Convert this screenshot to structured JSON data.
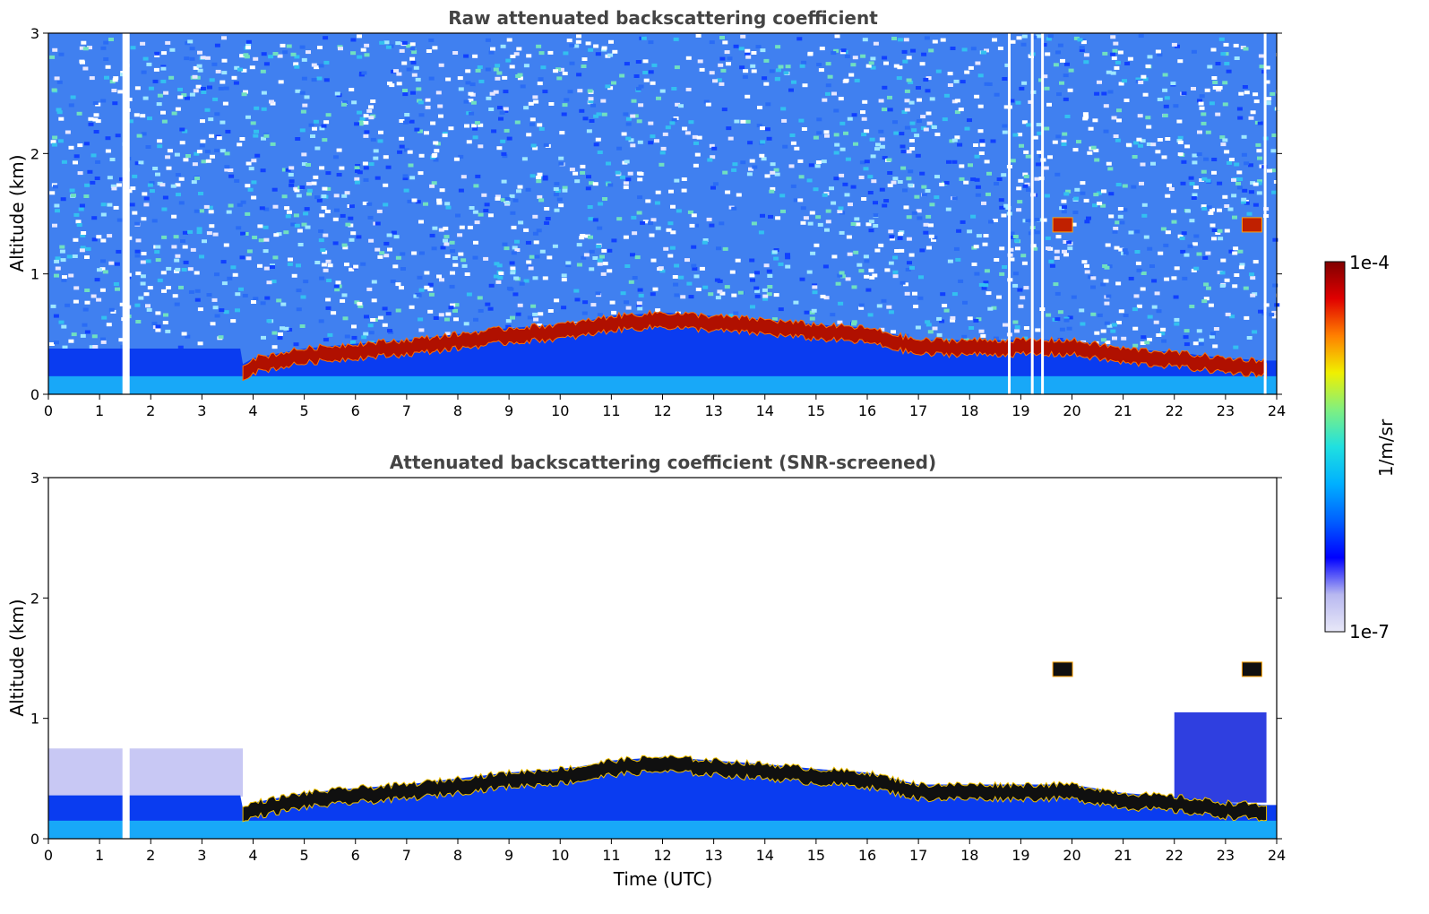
{
  "chart_data": [
    {
      "type": "heatmap",
      "title": "Raw attenuated backscattering coefficient",
      "xlabel": "",
      "ylabel": "Altitude (km)",
      "xlim": [
        0,
        24
      ],
      "ylim": [
        0,
        3
      ],
      "x_ticks": [
        "0",
        "1",
        "2",
        "3",
        "4",
        "5",
        "6",
        "7",
        "8",
        "9",
        "10",
        "11",
        "12",
        "13",
        "14",
        "15",
        "16",
        "17",
        "18",
        "19",
        "20",
        "21",
        "22",
        "23",
        "24"
      ],
      "y_ticks": [
        "0",
        "1",
        "2",
        "3"
      ],
      "boundary_layer_top_km": {
        "time_utc": [
          3.8,
          4,
          5,
          6,
          7,
          8,
          9,
          10,
          10.4,
          11,
          12,
          13,
          14,
          15,
          16,
          17,
          18,
          19,
          20,
          21,
          22,
          23,
          23.8
        ],
        "altitude_km": [
          0.25,
          0.3,
          0.38,
          0.42,
          0.45,
          0.5,
          0.55,
          0.58,
          0.6,
          0.65,
          0.68,
          0.65,
          0.62,
          0.58,
          0.55,
          0.45,
          0.45,
          0.45,
          0.45,
          0.38,
          0.35,
          0.3,
          0.28
        ]
      },
      "elevated_features": [
        {
          "time_utc": 19.8,
          "altitude_km": 1.4
        },
        {
          "time_utc": 23.5,
          "altitude_km": 1.4
        }
      ],
      "data_gaps_utc": [
        1.5,
        18.8,
        19.25,
        19.45,
        23.8
      ]
    },
    {
      "type": "heatmap",
      "title": "Attenuated backscattering coefficient (SNR-screened)",
      "xlabel": "Time (UTC)",
      "ylabel": "Altitude (km)",
      "xlim": [
        0,
        24
      ],
      "ylim": [
        0,
        3
      ],
      "x_ticks": [
        "0",
        "1",
        "2",
        "3",
        "4",
        "5",
        "6",
        "7",
        "8",
        "9",
        "10",
        "11",
        "12",
        "13",
        "14",
        "15",
        "16",
        "17",
        "18",
        "19",
        "20",
        "21",
        "22",
        "23",
        "24"
      ],
      "y_ticks": [
        "0",
        "1",
        "2",
        "3"
      ],
      "boundary_layer_top_km": {
        "time_utc": [
          3.8,
          4,
          5,
          6,
          7,
          8,
          9,
          10,
          10.4,
          11,
          12,
          13,
          14,
          15,
          16,
          17,
          18,
          19,
          20,
          21,
          22,
          23,
          23.8
        ],
        "altitude_km": [
          0.25,
          0.3,
          0.38,
          0.42,
          0.45,
          0.5,
          0.55,
          0.58,
          0.6,
          0.65,
          0.68,
          0.65,
          0.62,
          0.58,
          0.55,
          0.45,
          0.45,
          0.45,
          0.45,
          0.38,
          0.35,
          0.3,
          0.28
        ]
      },
      "elevated_features": [
        {
          "time_utc": 19.8,
          "altitude_km": 1.4
        },
        {
          "time_utc": 23.5,
          "altitude_km": 1.4
        }
      ]
    }
  ],
  "colorbar": {
    "max_label": "1e-4",
    "min_label": "1e-7",
    "unit_label": "1/m/sr",
    "colors": [
      "#e8e8f8",
      "#b8b8f0",
      "#0000ff",
      "#0060ff",
      "#00b0ff",
      "#20e0e0",
      "#80f080",
      "#f0f000",
      "#ff8000",
      "#e00000",
      "#800000"
    ]
  }
}
